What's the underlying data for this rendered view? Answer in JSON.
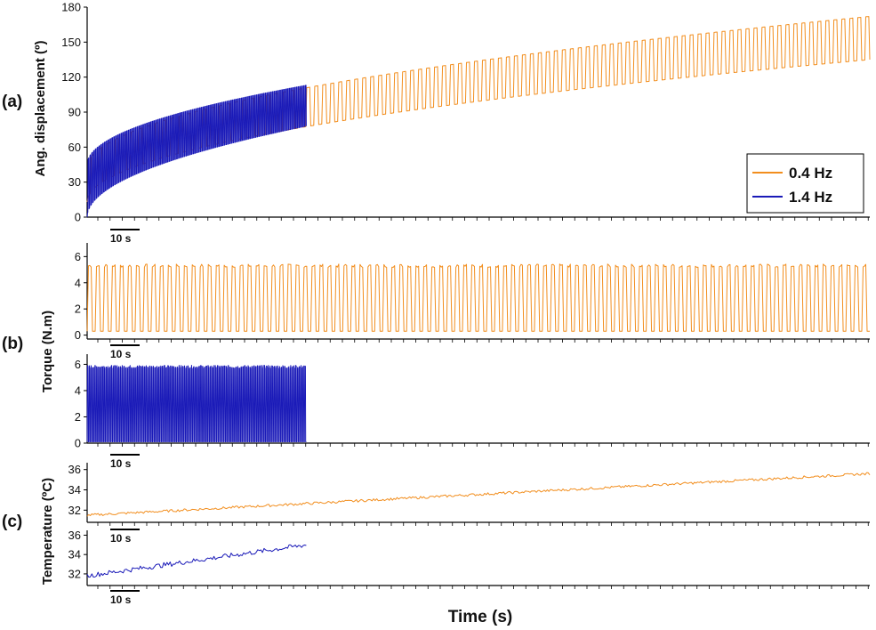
{
  "colors": {
    "orange": "#f28e1e",
    "blue": "#1a1ab8",
    "axis": "#000000"
  },
  "xlabel": "Time (s)",
  "panel_letters": [
    "(a)",
    "(b)",
    "(c)"
  ],
  "chart_data": [
    {
      "id": "angle",
      "type": "line",
      "ylabel": "Ang. displacement (º)",
      "ylim": [
        0,
        180
      ],
      "yticks": [
        "0",
        "30",
        "60",
        "90",
        "120",
        "150",
        "180"
      ],
      "scalebar": "10 s",
      "legend": {
        "position": "bottom-right",
        "entries": [
          {
            "name": "0.4 Hz",
            "color": "orange"
          },
          {
            "name": "1.4 Hz",
            "color": "blue"
          }
        ]
      },
      "series": [
        {
          "name": "0.4 Hz",
          "color": "orange",
          "cycles": 98,
          "t_end": 1.0,
          "min_start": 13,
          "min_end": 135,
          "max_start": 42,
          "max_end": 172
        },
        {
          "name": "1.4 Hz",
          "color": "blue",
          "cycles": 120,
          "t_end": 0.28,
          "min_start": 0,
          "min_end": 78,
          "max_start": 45,
          "max_end": 113
        }
      ]
    },
    {
      "id": "torque-04",
      "type": "line",
      "ylabel": "",
      "ylim": [
        -0.3,
        6.5
      ],
      "yticks": [
        "0",
        "2",
        "4",
        "6"
      ],
      "scalebar": "10 s",
      "series": [
        {
          "name": "0.4 Hz",
          "color": "orange",
          "cycles": 98,
          "t_end": 1.0,
          "low": 0.3,
          "high": 5.3
        }
      ]
    },
    {
      "id": "torque-14",
      "type": "line",
      "ylabel": "Torque (N.m)",
      "ylim": [
        0,
        6.3
      ],
      "yticks": [
        "0",
        "2",
        "4",
        "6"
      ],
      "scalebar": "10 s",
      "series": [
        {
          "name": "1.4 Hz",
          "color": "blue",
          "cycles": 120,
          "t_end": 0.28,
          "low": 0.1,
          "high": 5.8
        }
      ]
    },
    {
      "id": "temp-04",
      "type": "line",
      "ylabel": "",
      "ylim": [
        30.8,
        36.5
      ],
      "yticks": [
        "32",
        "34",
        "36"
      ],
      "scalebar": "10 s",
      "series": [
        {
          "name": "0.4 Hz",
          "color": "orange",
          "t_end": 1.0,
          "start": 31.5,
          "end": 35.6
        }
      ]
    },
    {
      "id": "temp-14",
      "type": "line",
      "ylabel": "Temperature (ºC)",
      "ylim": [
        30.8,
        36.5
      ],
      "yticks": [
        "32",
        "34",
        "36"
      ],
      "scalebar": "10 s",
      "series": [
        {
          "name": "1.4 Hz",
          "color": "blue",
          "t_end": 0.28,
          "start": 31.8,
          "end": 35.0
        }
      ]
    }
  ]
}
